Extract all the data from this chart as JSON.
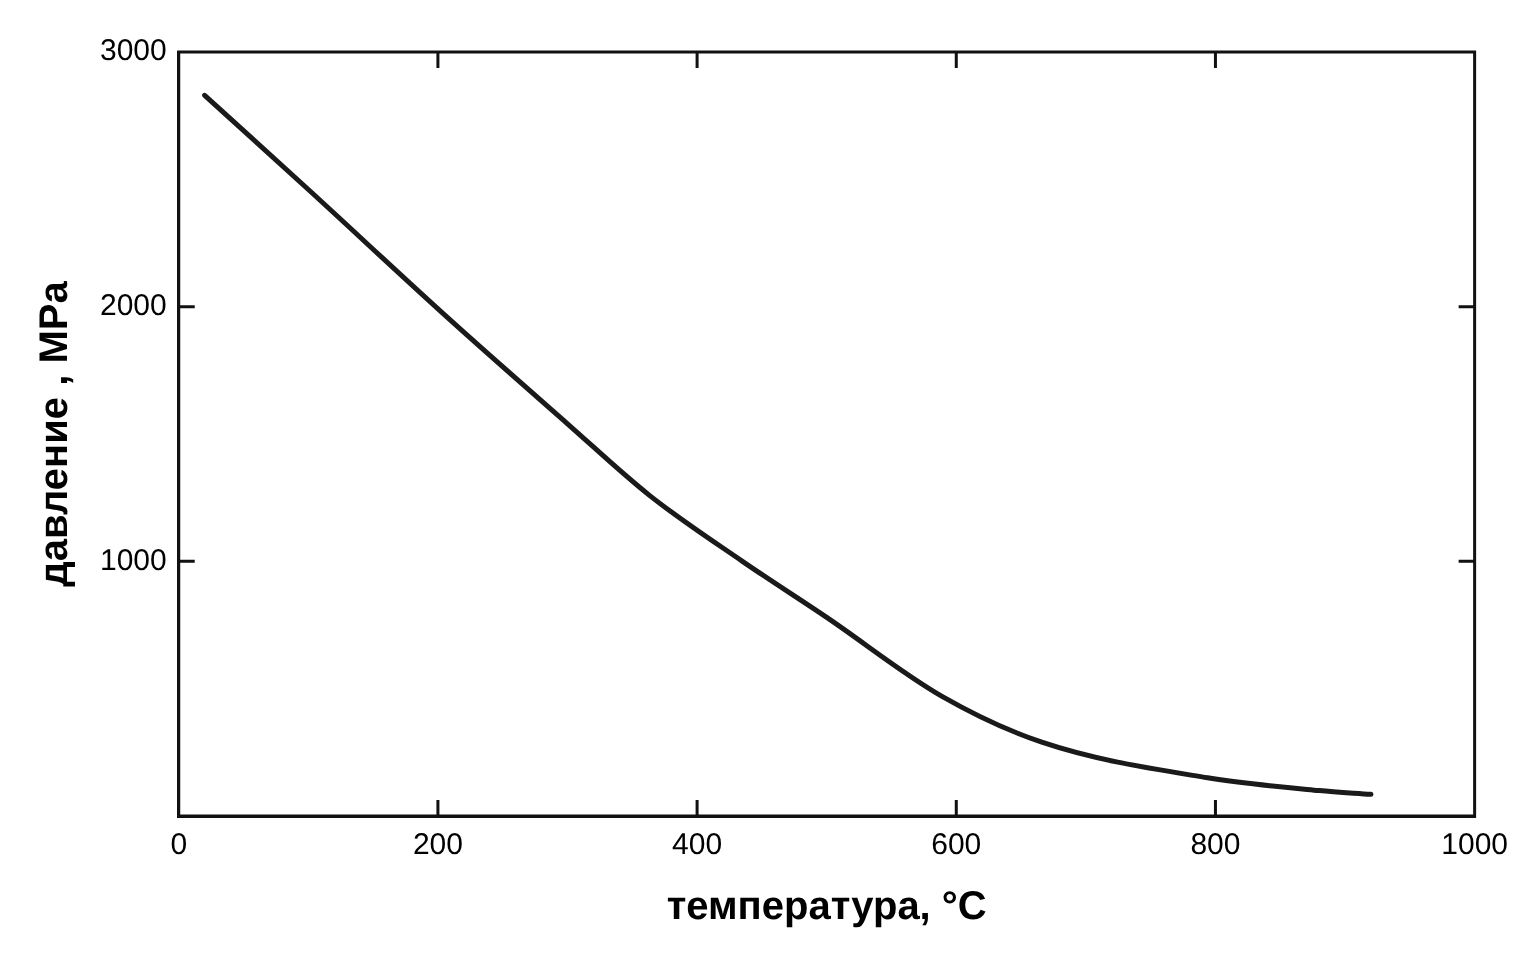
{
  "chart_data": {
    "type": "line",
    "xlabel": "температура, °C",
    "ylabel": "давление , MPa",
    "xlim": [
      0,
      1000
    ],
    "xticks": [
      0,
      200,
      400,
      600,
      800,
      1000
    ],
    "ylim": [
      0,
      3000
    ],
    "yticks": [
      1000,
      2000,
      3000
    ],
    "grid": false,
    "legend": false,
    "marker": "none",
    "line_style": "solid",
    "series": [
      {
        "color": "#1a1a1a",
        "x": [
          20,
          100,
          209,
          300,
          363,
          435,
          500,
          589,
          666,
          794,
          880,
          920
        ],
        "values": [
          2830,
          2460,
          1950,
          1540,
          1260,
          1000,
          780,
          470,
          290,
          150,
          100,
          85
        ]
      }
    ]
  }
}
